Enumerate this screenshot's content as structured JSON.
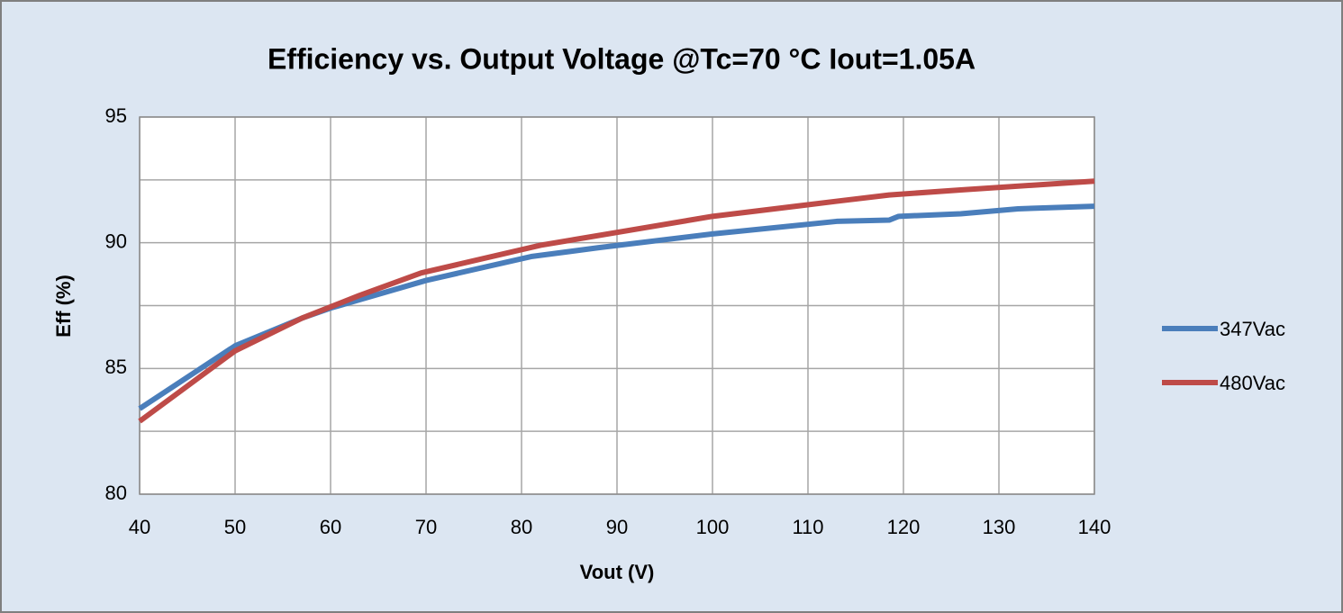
{
  "chart_data": {
    "type": "line",
    "title": "Efficiency vs. Output Voltage @Tc=70 °C Iout=1.05A",
    "x_label": "Vout (V)",
    "y_label": "Eff (%)",
    "xlim": [
      40,
      140
    ],
    "xticks": [
      40,
      50,
      60,
      70,
      80,
      90,
      100,
      110,
      120,
      130,
      140
    ],
    "ylim": [
      80,
      95
    ],
    "yticks": [
      80,
      85,
      90,
      95
    ],
    "yminorticks": [
      82.5,
      87.5,
      92.5
    ],
    "grid": true,
    "legend": "right",
    "series": [
      {
        "name": "347Vac",
        "color": "#4a7ebb",
        "x": [
          40,
          50,
          57,
          60,
          70,
          81,
          88,
          100,
          113,
          118.5,
          119.5,
          126,
          132,
          140
        ],
        "values": [
          83.4,
          85.9,
          87.0,
          87.4,
          88.5,
          89.45,
          89.8,
          90.35,
          90.85,
          90.9,
          91.05,
          91.15,
          91.35,
          91.45
        ]
      },
      {
        "name": "480Vac",
        "color": "#be4b48",
        "x": [
          40,
          50,
          57,
          63,
          69.5,
          82,
          100,
          113,
          118.5,
          126,
          140
        ],
        "values": [
          82.9,
          85.7,
          87.0,
          87.9,
          88.8,
          89.9,
          91.05,
          91.65,
          91.9,
          92.1,
          92.45
        ]
      }
    ]
  }
}
